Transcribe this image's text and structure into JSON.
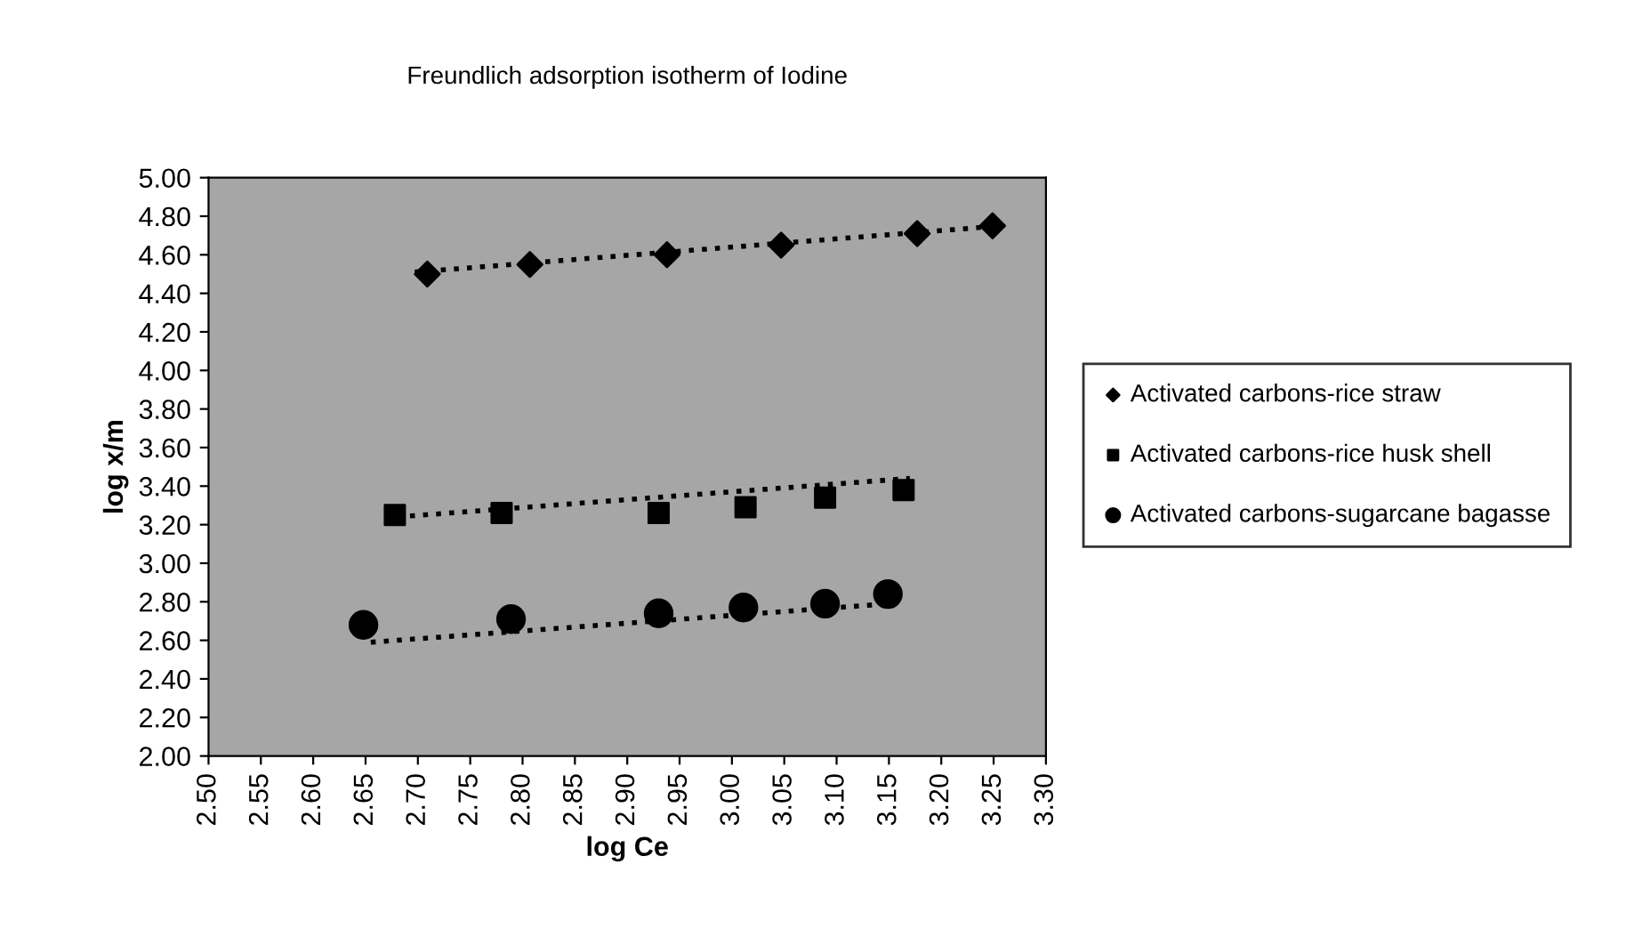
{
  "chart_data": {
    "type": "scatter",
    "title": "Freundlich adsorption isotherm of Iodine",
    "xlabel": "log Ce",
    "ylabel": "log x/m",
    "xlim": [
      2.5,
      3.3
    ],
    "ylim": [
      2.0,
      5.0
    ],
    "xticks": [
      {
        "value": 2.5,
        "label": "2.50"
      },
      {
        "value": 2.55,
        "label": "2.55"
      },
      {
        "value": 2.6,
        "label": "2.60"
      },
      {
        "value": 2.65,
        "label": "2.65"
      },
      {
        "value": 2.7,
        "label": "2.70"
      },
      {
        "value": 2.75,
        "label": "2.75"
      },
      {
        "value": 2.8,
        "label": "2.80"
      },
      {
        "value": 2.85,
        "label": "2.85"
      },
      {
        "value": 2.9,
        "label": "2.90"
      },
      {
        "value": 2.95,
        "label": "2.95"
      },
      {
        "value": 3.0,
        "label": "3.00"
      },
      {
        "value": 3.05,
        "label": "3.05"
      },
      {
        "value": 3.1,
        "label": "3.10"
      },
      {
        "value": 3.15,
        "label": "3.15"
      },
      {
        "value": 3.2,
        "label": "3.20"
      },
      {
        "value": 3.25,
        "label": "3.25"
      },
      {
        "value": 3.3,
        "label": "3.30"
      }
    ],
    "yticks": [
      {
        "value": 2.0,
        "label": "2.00"
      },
      {
        "value": 2.2,
        "label": "2.20"
      },
      {
        "value": 2.4,
        "label": "2.40"
      },
      {
        "value": 2.6,
        "label": "2.60"
      },
      {
        "value": 2.8,
        "label": "2.80"
      },
      {
        "value": 3.0,
        "label": "3.00"
      },
      {
        "value": 3.2,
        "label": "3.20"
      },
      {
        "value": 3.4,
        "label": "3.40"
      },
      {
        "value": 3.6,
        "label": "3.60"
      },
      {
        "value": 3.8,
        "label": "3.80"
      },
      {
        "value": 4.0,
        "label": "4.00"
      },
      {
        "value": 4.2,
        "label": "4.20"
      },
      {
        "value": 4.4,
        "label": "4.40"
      },
      {
        "value": 4.6,
        "label": "4.60"
      },
      {
        "value": 4.8,
        "label": "4.80"
      },
      {
        "value": 5.0,
        "label": "5.00"
      }
    ],
    "grid": false,
    "legend": "right",
    "series": [
      {
        "name": "Activated carbons-rice straw",
        "color": "#000000",
        "marker": "diamond",
        "x": [
          2.709,
          2.807,
          2.938,
          3.047,
          3.177,
          3.249
        ],
        "values": [
          4.5,
          4.55,
          4.6,
          4.65,
          4.71,
          4.75
        ]
      },
      {
        "name": "Activated carbons-rice husk shell",
        "color": "#000000",
        "marker": "square",
        "x": [
          2.678,
          2.78,
          2.93,
          3.013,
          3.089,
          3.164
        ],
        "values": [
          3.25,
          3.26,
          3.26,
          3.29,
          3.34,
          3.38
        ]
      },
      {
        "name": "Activated carbons-sugarcane bagasse",
        "color": "#000000",
        "marker": "circle",
        "x": [
          2.648,
          2.789,
          2.93,
          3.011,
          3.089,
          3.149
        ],
        "values": [
          2.68,
          2.71,
          2.74,
          2.77,
          2.79,
          2.84
        ]
      },
      {
        "type": "line",
        "color": "#000000",
        "line_style": "dotted",
        "marker": "none",
        "x": [
          2.697,
          3.257
        ],
        "values": [
          4.51,
          4.75
        ]
      },
      {
        "type": "line",
        "color": "#000000",
        "line_style": "dotted",
        "marker": "none",
        "x": [
          2.68,
          3.17
        ],
        "values": [
          3.24,
          3.44
        ]
      },
      {
        "type": "line",
        "color": "#000000",
        "line_style": "dotted",
        "marker": "none",
        "x": [
          2.655,
          3.15
        ],
        "values": [
          2.59,
          2.79
        ]
      }
    ]
  }
}
